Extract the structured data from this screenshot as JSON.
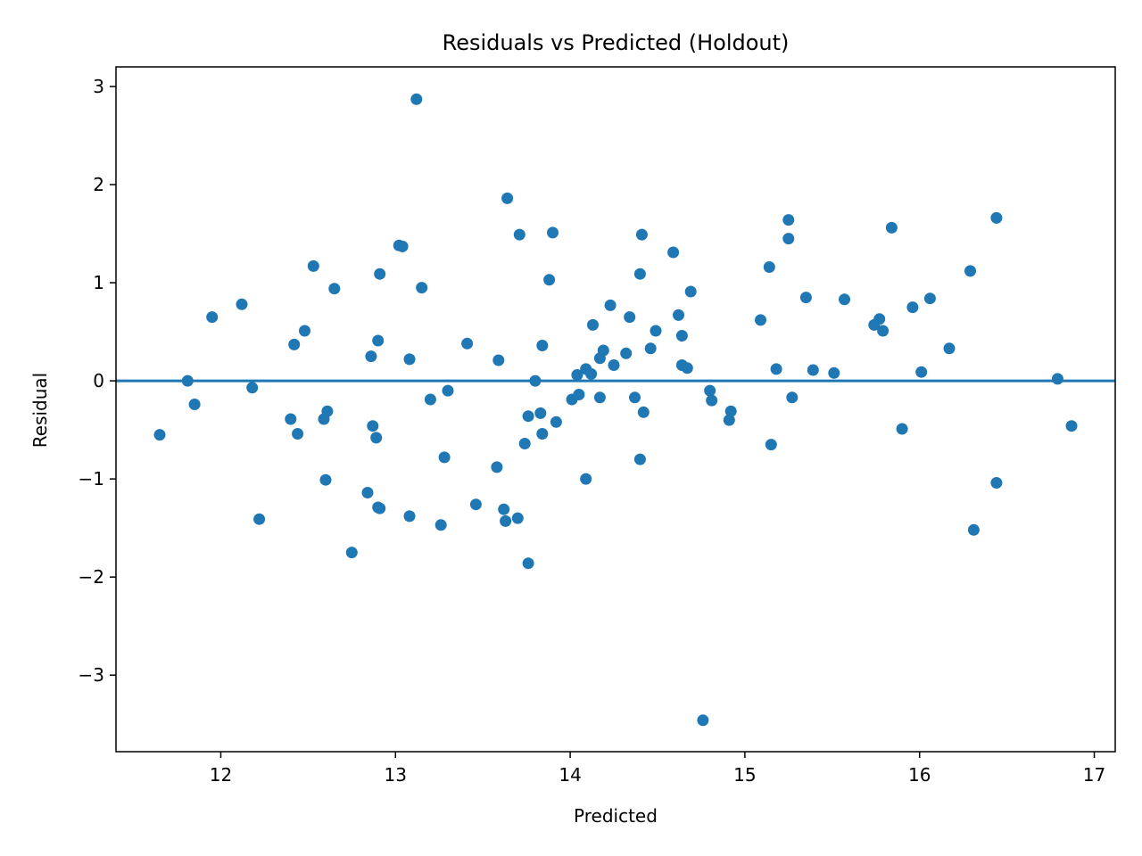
{
  "chart_data": {
    "type": "scatter",
    "title": "Residuals vs Predicted (Holdout)",
    "xlabel": "Predicted",
    "ylabel": "Residual",
    "xlim": [
      11.4,
      17.12
    ],
    "ylim": [
      -3.78,
      3.2
    ],
    "xticks": [
      12,
      13,
      14,
      15,
      16,
      17
    ],
    "xtick_labels": [
      "12",
      "13",
      "14",
      "15",
      "16",
      "17"
    ],
    "yticks": [
      -3,
      -2,
      -1,
      0,
      1,
      2,
      3
    ],
    "ytick_labels": [
      "−3",
      "−2",
      "−1",
      "0",
      "1",
      "2",
      "3"
    ],
    "reference_line_y": 0,
    "grid": false,
    "legend": "none",
    "color": "#1f77b4",
    "points": [
      [
        11.65,
        -0.55
      ],
      [
        11.81,
        0.0
      ],
      [
        11.85,
        -0.24
      ],
      [
        11.95,
        0.65
      ],
      [
        12.12,
        0.78
      ],
      [
        12.18,
        -0.07
      ],
      [
        12.22,
        -1.41
      ],
      [
        12.4,
        -0.39
      ],
      [
        12.42,
        0.37
      ],
      [
        12.44,
        -0.54
      ],
      [
        12.48,
        0.51
      ],
      [
        12.53,
        1.17
      ],
      [
        12.59,
        -0.39
      ],
      [
        12.6,
        -1.01
      ],
      [
        12.61,
        -0.31
      ],
      [
        12.65,
        0.94
      ],
      [
        12.75,
        -1.75
      ],
      [
        12.84,
        -1.14
      ],
      [
        12.86,
        0.25
      ],
      [
        12.87,
        -0.46
      ],
      [
        12.89,
        -0.58
      ],
      [
        12.9,
        -1.29
      ],
      [
        12.9,
        0.41
      ],
      [
        12.91,
        1.09
      ],
      [
        12.91,
        -1.3
      ],
      [
        13.02,
        1.38
      ],
      [
        13.04,
        1.37
      ],
      [
        13.08,
        0.22
      ],
      [
        13.08,
        -1.38
      ],
      [
        13.12,
        2.87
      ],
      [
        13.15,
        0.95
      ],
      [
        13.2,
        -0.19
      ],
      [
        13.26,
        -1.47
      ],
      [
        13.28,
        -0.78
      ],
      [
        13.3,
        -0.1
      ],
      [
        13.41,
        0.38
      ],
      [
        13.46,
        -1.26
      ],
      [
        13.58,
        -0.88
      ],
      [
        13.59,
        0.21
      ],
      [
        13.62,
        -1.31
      ],
      [
        13.63,
        -1.43
      ],
      [
        13.64,
        1.86
      ],
      [
        13.7,
        -1.4
      ],
      [
        13.71,
        1.49
      ],
      [
        13.74,
        -0.64
      ],
      [
        13.76,
        -1.86
      ],
      [
        13.76,
        -0.36
      ],
      [
        13.8,
        0.0
      ],
      [
        13.83,
        -0.33
      ],
      [
        13.84,
        0.36
      ],
      [
        13.84,
        -0.54
      ],
      [
        13.88,
        1.03
      ],
      [
        13.9,
        1.51
      ],
      [
        13.92,
        -0.42
      ],
      [
        14.01,
        -0.19
      ],
      [
        14.04,
        0.06
      ],
      [
        14.05,
        -0.14
      ],
      [
        14.09,
        0.12
      ],
      [
        14.09,
        -1.0
      ],
      [
        14.12,
        0.07
      ],
      [
        14.13,
        0.57
      ],
      [
        14.17,
        0.23
      ],
      [
        14.17,
        -0.17
      ],
      [
        14.19,
        0.31
      ],
      [
        14.23,
        0.77
      ],
      [
        14.25,
        0.16
      ],
      [
        14.32,
        0.28
      ],
      [
        14.34,
        0.65
      ],
      [
        14.37,
        -0.17
      ],
      [
        14.4,
        -0.8
      ],
      [
        14.4,
        1.09
      ],
      [
        14.41,
        1.49
      ],
      [
        14.42,
        -0.32
      ],
      [
        14.46,
        0.33
      ],
      [
        14.49,
        0.51
      ],
      [
        14.59,
        1.31
      ],
      [
        14.62,
        0.67
      ],
      [
        14.64,
        0.46
      ],
      [
        14.64,
        0.16
      ],
      [
        14.67,
        0.13
      ],
      [
        14.69,
        0.91
      ],
      [
        14.76,
        -3.46
      ],
      [
        14.8,
        -0.1
      ],
      [
        14.81,
        -0.2
      ],
      [
        14.91,
        -0.4
      ],
      [
        14.92,
        -0.31
      ],
      [
        15.09,
        0.62
      ],
      [
        15.14,
        1.16
      ],
      [
        15.15,
        -0.65
      ],
      [
        15.18,
        0.12
      ],
      [
        15.25,
        1.64
      ],
      [
        15.25,
        1.45
      ],
      [
        15.27,
        -0.17
      ],
      [
        15.35,
        0.85
      ],
      [
        15.39,
        0.11
      ],
      [
        15.51,
        0.08
      ],
      [
        15.57,
        0.83
      ],
      [
        15.74,
        0.57
      ],
      [
        15.77,
        0.63
      ],
      [
        15.79,
        0.51
      ],
      [
        15.84,
        1.56
      ],
      [
        15.9,
        -0.49
      ],
      [
        15.96,
        0.75
      ],
      [
        16.01,
        0.09
      ],
      [
        16.06,
        0.84
      ],
      [
        16.17,
        0.33
      ],
      [
        16.29,
        1.12
      ],
      [
        16.31,
        -1.52
      ],
      [
        16.44,
        1.66
      ],
      [
        16.44,
        -1.04
      ],
      [
        16.79,
        0.02
      ],
      [
        16.87,
        -0.46
      ]
    ]
  }
}
